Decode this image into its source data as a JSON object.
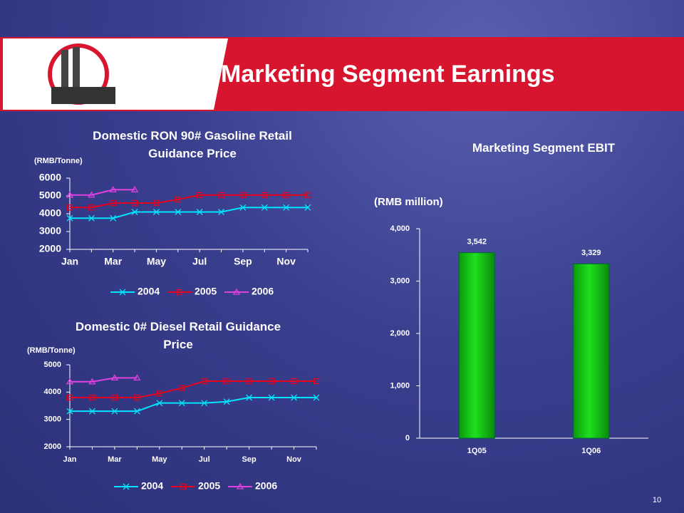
{
  "title": "Marketing Segment Earnings",
  "page_number": "10",
  "chart_data": [
    {
      "type": "line",
      "title": "Domestic RON 90# Gasoline Retail Guidance Price",
      "y_label": "(RMB/Tonne)",
      "categories": [
        "Jan",
        null,
        "Mar",
        null,
        "May",
        null,
        "Jul",
        null,
        "Sep",
        null,
        "Nov",
        null
      ],
      "ylim": [
        2000,
        6000
      ],
      "yticks": [
        2000,
        3000,
        4000,
        5000,
        6000
      ],
      "legend": "bottom",
      "series": [
        {
          "name": "2004",
          "color": "#00e5ff",
          "marker": "x",
          "values": [
            3750,
            3750,
            3750,
            4100,
            4100,
            4100,
            4100,
            4100,
            4350,
            4350,
            4350,
            4350
          ]
        },
        {
          "name": "2005",
          "color": "#e8001c",
          "marker": "square",
          "values": [
            4350,
            4350,
            4600,
            4600,
            4600,
            4800,
            5050,
            5050,
            5050,
            5050,
            5050,
            5050
          ]
        },
        {
          "name": "2006",
          "color": "#e040e0",
          "marker": "triangle",
          "values": [
            5050,
            5050,
            5350,
            5350,
            null,
            null,
            null,
            null,
            null,
            null,
            null,
            null
          ]
        }
      ]
    },
    {
      "type": "line",
      "title": "Domestic 0# Diesel Retail Guidance Price",
      "y_label": "(RMB/Tonne)",
      "categories": [
        "Jan",
        null,
        "Mar",
        null,
        "May",
        null,
        "Jul",
        null,
        "Sep",
        null,
        "Nov",
        null
      ],
      "ylim": [
        2000,
        5000
      ],
      "yticks": [
        2000,
        3000,
        4000,
        5000
      ],
      "legend": "bottom",
      "series": [
        {
          "name": "2004",
          "color": "#00e5ff",
          "marker": "x",
          "values": [
            3300,
            3300,
            3300,
            3300,
            3600,
            3600,
            3600,
            3650,
            3800,
            3800,
            3800,
            3800
          ]
        },
        {
          "name": "2005",
          "color": "#e8001c",
          "marker": "square",
          "values": [
            3800,
            3800,
            3800,
            3800,
            3950,
            4150,
            4400,
            4400,
            4400,
            4400,
            4400,
            4400
          ]
        },
        {
          "name": "2006",
          "color": "#e040e0",
          "marker": "triangle",
          "values": [
            4380,
            4380,
            4520,
            4520,
            null,
            null,
            null,
            null,
            null,
            null,
            null,
            null
          ]
        }
      ]
    },
    {
      "type": "bar",
      "title": "Marketing Segment EBIT",
      "y_label": "(RMB million)",
      "categories": [
        "1Q05",
        "1Q06"
      ],
      "values": [
        3542,
        3329
      ],
      "value_labels": [
        "3,542",
        "3,329"
      ],
      "color": "#1ee01e",
      "ylim": [
        0,
        4000
      ],
      "yticks": [
        0,
        {
          "value": 1000,
          "label": "1,000"
        },
        {
          "value": 2000,
          "label": "2,000"
        },
        {
          "value": 3000,
          "label": "3,000"
        },
        {
          "value": 4000,
          "label": "4,000"
        }
      ]
    }
  ]
}
